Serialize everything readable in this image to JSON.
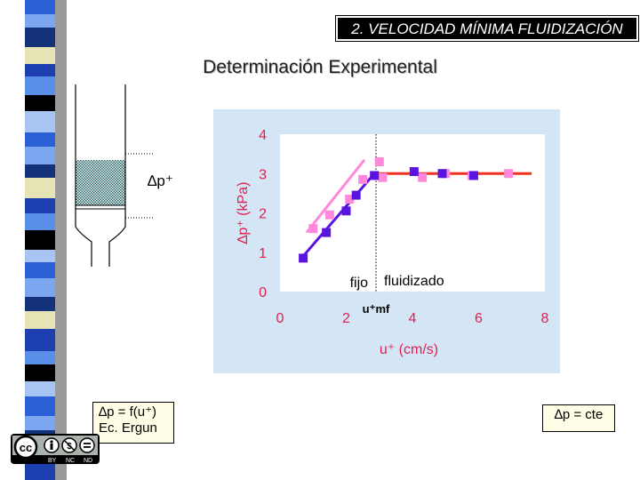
{
  "header": {
    "title": "2. VELOCIDAD MÍNIMA FLUIDIZACIÓN",
    "subtitle": "Determinación Experimental"
  },
  "diagram": {
    "pressure_label": "∆p⁺"
  },
  "notes": {
    "left_line1": "∆p = f(u⁺)",
    "left_line2": "Ec. Ergun",
    "right": "∆p = cte"
  },
  "license": {
    "labels": [
      "BY",
      "NC",
      "ND"
    ]
  },
  "colors": {
    "dark_series": "#5a14e0",
    "light_series": "#ff88dd",
    "fluidized_line": "#ee3322",
    "axis_text": "#e02050",
    "chart_bg": "#d4e6f6"
  },
  "chart_data": {
    "type": "scatter",
    "xlabel": "u⁺ (cm/s)",
    "ylabel": "∆p⁺ (kPa)",
    "xlim": [
      0,
      8
    ],
    "ylim": [
      0,
      4
    ],
    "x_ticks": [
      "0",
      "2",
      "4",
      "6",
      "8"
    ],
    "y_ticks": [
      "0",
      "1",
      "2",
      "3",
      "4"
    ],
    "umf_label": "u⁺mf",
    "umf_x": 2.9,
    "region_labels": {
      "fixed": "fijo",
      "fluidized": "fluidizado"
    },
    "series": [
      {
        "color": "#ff88dd",
        "marker": "square",
        "points": [
          [
            1.0,
            1.6
          ],
          [
            1.5,
            1.95
          ],
          [
            2.1,
            2.35
          ],
          [
            2.5,
            2.85
          ],
          [
            3.0,
            3.3
          ],
          [
            3.1,
            2.9
          ],
          [
            4.3,
            2.9
          ],
          [
            5.0,
            3.0
          ],
          [
            5.8,
            2.95
          ],
          [
            6.9,
            3.0
          ]
        ]
      },
      {
        "color": "#5a14e0",
        "marker": "square",
        "points": [
          [
            0.7,
            0.85
          ],
          [
            1.4,
            1.5
          ],
          [
            2.0,
            2.05
          ],
          [
            2.3,
            2.45
          ],
          [
            2.85,
            2.95
          ],
          [
            4.05,
            3.05
          ],
          [
            4.9,
            3.0
          ],
          [
            5.85,
            2.95
          ]
        ]
      }
    ],
    "lines": [
      {
        "color": "#ff88dd",
        "points": [
          [
            0.8,
            1.5
          ],
          [
            2.55,
            3.35
          ]
        ]
      },
      {
        "color": "#5a14e0",
        "points": [
          [
            0.7,
            0.9
          ],
          [
            2.85,
            3.0
          ]
        ]
      },
      {
        "color": "#ee3322",
        "points": [
          [
            2.85,
            3.0
          ],
          [
            7.6,
            3.0
          ]
        ]
      }
    ]
  }
}
